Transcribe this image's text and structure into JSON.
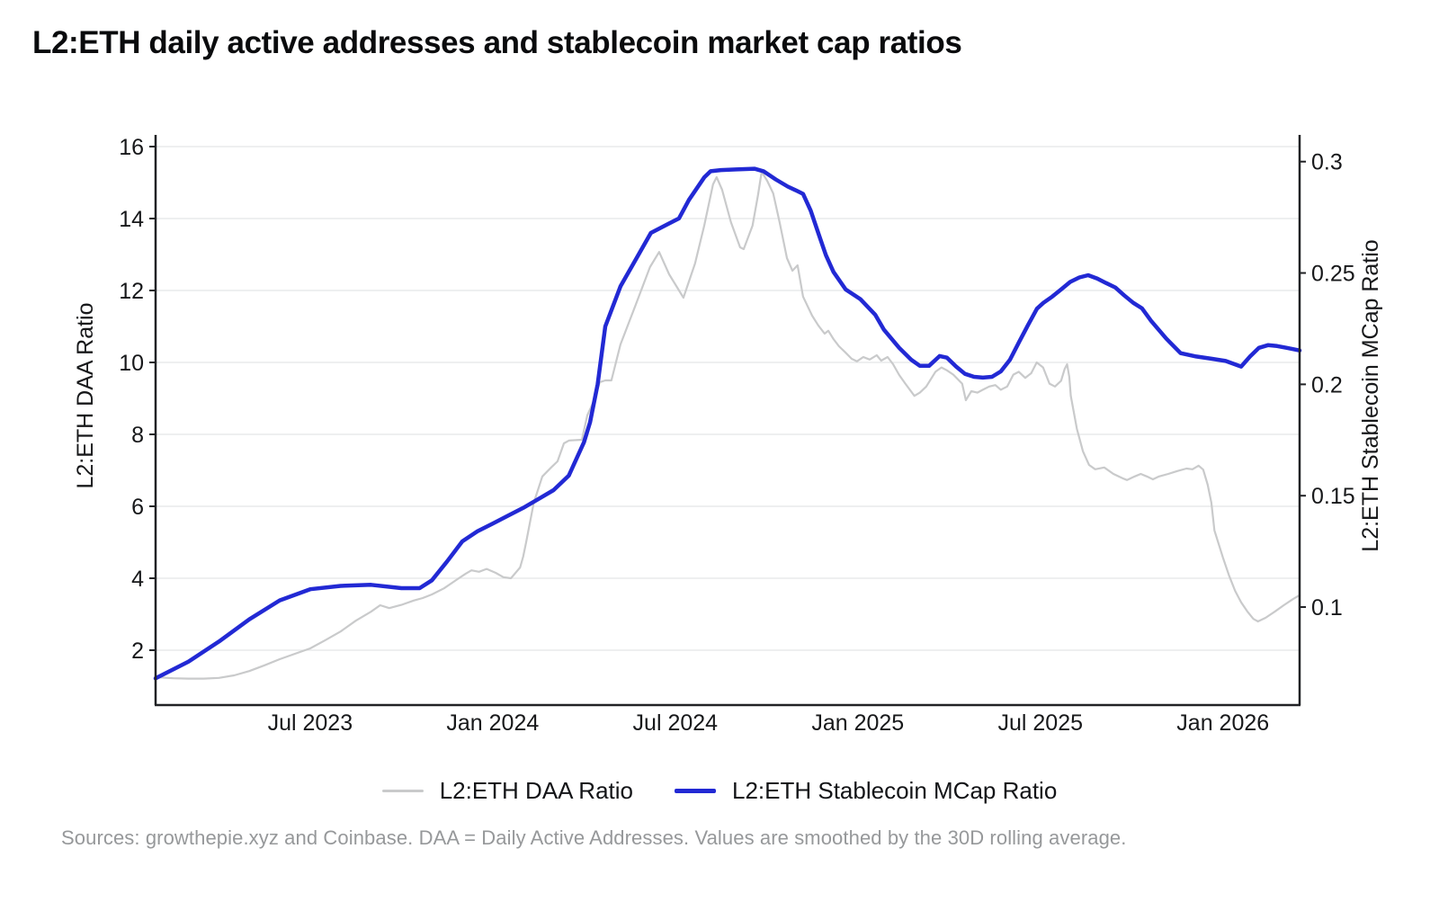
{
  "title": "L2:ETH daily active addresses and stablecoin market cap ratios",
  "source_note": "Sources: growthepie.xyz and Coinbase. DAA = Daily Active Addresses. Values are smoothed by the 30D rolling average.",
  "chart_data": {
    "type": "line",
    "title": "L2:ETH daily active addresses and stablecoin market cap ratios",
    "x_unit": "months since Jan 2023 (fractional)",
    "xlim": [
      0.92,
      38.52
    ],
    "x_ticks": [
      {
        "t": 6,
        "label": "Jul 2023"
      },
      {
        "t": 12,
        "label": "Jan 2024"
      },
      {
        "t": 18,
        "label": "Jul 2024"
      },
      {
        "t": 24,
        "label": "Jan 2025"
      },
      {
        "t": 30,
        "label": "Jul 2025"
      },
      {
        "t": 36,
        "label": "Jan 2026"
      }
    ],
    "axes": {
      "left": {
        "title": "L2:ETH DAA Ratio",
        "range": [
          0.475,
          16.325
        ],
        "ticks": [
          {
            "v": 2,
            "label": "2"
          },
          {
            "v": 4,
            "label": "4"
          },
          {
            "v": 6,
            "label": "6"
          },
          {
            "v": 8,
            "label": "8"
          },
          {
            "v": 10,
            "label": "10"
          },
          {
            "v": 12,
            "label": "12"
          },
          {
            "v": 14,
            "label": "14"
          },
          {
            "v": 16,
            "label": "16"
          }
        ]
      },
      "right": {
        "title": "L2:ETH Stablecoin MCap Ratio",
        "range": [
          0.056,
          0.312
        ],
        "ticks": [
          {
            "v": 0.1,
            "label": "0.1"
          },
          {
            "v": 0.15,
            "label": "0.15"
          },
          {
            "v": 0.2,
            "label": "0.2"
          },
          {
            "v": 0.25,
            "label": "0.25"
          },
          {
            "v": 0.3,
            "label": "0.3"
          }
        ]
      }
    },
    "grid": {
      "show": true,
      "color": "#e4e5e6",
      "on_axis": "left"
    },
    "axis_color": "#212225",
    "legend_position": "bottom-center",
    "series": [
      {
        "name": "L2:ETH DAA Ratio",
        "axis": "left",
        "color": "#c9cacb",
        "width": 2.2,
        "points": [
          [
            0.92,
            1.25
          ],
          [
            1.5,
            1.22
          ],
          [
            2,
            1.21
          ],
          [
            2.5,
            1.21
          ],
          [
            3,
            1.23
          ],
          [
            3.5,
            1.3
          ],
          [
            4,
            1.42
          ],
          [
            4.5,
            1.58
          ],
          [
            5,
            1.75
          ],
          [
            5.5,
            1.9
          ],
          [
            6,
            2.05
          ],
          [
            6.5,
            2.28
          ],
          [
            7,
            2.52
          ],
          [
            7.5,
            2.82
          ],
          [
            8,
            3.07
          ],
          [
            8.3,
            3.25
          ],
          [
            8.6,
            3.17
          ],
          [
            9,
            3.26
          ],
          [
            9.4,
            3.38
          ],
          [
            9.7,
            3.45
          ],
          [
            10,
            3.55
          ],
          [
            10.4,
            3.72
          ],
          [
            10.8,
            3.95
          ],
          [
            11.1,
            4.12
          ],
          [
            11.3,
            4.22
          ],
          [
            11.55,
            4.18
          ],
          [
            11.8,
            4.26
          ],
          [
            12.1,
            4.15
          ],
          [
            12.35,
            4.03
          ],
          [
            12.6,
            4.0
          ],
          [
            12.9,
            4.3
          ],
          [
            13.0,
            4.6
          ],
          [
            13.1,
            5.0
          ],
          [
            13.35,
            6.1
          ],
          [
            13.63,
            6.83
          ],
          [
            13.92,
            7.08
          ],
          [
            14.13,
            7.25
          ],
          [
            14.34,
            7.75
          ],
          [
            14.51,
            7.83
          ],
          [
            14.93,
            7.85
          ],
          [
            15.11,
            8.53
          ],
          [
            15.31,
            8.9
          ],
          [
            15.52,
            9.45
          ],
          [
            15.7,
            9.5
          ],
          [
            15.9,
            9.5
          ],
          [
            16.2,
            10.5
          ],
          [
            16.7,
            11.6
          ],
          [
            17.17,
            12.65
          ],
          [
            17.47,
            13.07
          ],
          [
            17.8,
            12.45
          ],
          [
            18.27,
            11.8
          ],
          [
            18.65,
            12.75
          ],
          [
            18.95,
            13.8
          ],
          [
            19.24,
            14.95
          ],
          [
            19.36,
            15.15
          ],
          [
            19.54,
            14.8
          ],
          [
            19.83,
            13.9
          ],
          [
            20.13,
            13.2
          ],
          [
            20.25,
            13.15
          ],
          [
            20.54,
            13.8
          ],
          [
            20.72,
            14.65
          ],
          [
            20.84,
            15.3
          ],
          [
            21.02,
            15.05
          ],
          [
            21.22,
            14.7
          ],
          [
            21.43,
            13.9
          ],
          [
            21.67,
            12.9
          ],
          [
            21.85,
            12.55
          ],
          [
            22.02,
            12.7
          ],
          [
            22.2,
            11.83
          ],
          [
            22.5,
            11.3
          ],
          [
            22.7,
            11.03
          ],
          [
            22.91,
            10.8
          ],
          [
            23.03,
            10.88
          ],
          [
            23.2,
            10.65
          ],
          [
            23.38,
            10.45
          ],
          [
            23.59,
            10.28
          ],
          [
            23.8,
            10.1
          ],
          [
            23.97,
            10.03
          ],
          [
            24.18,
            10.15
          ],
          [
            24.39,
            10.08
          ],
          [
            24.62,
            10.2
          ],
          [
            24.77,
            10.05
          ],
          [
            24.98,
            10.15
          ],
          [
            25.16,
            9.95
          ],
          [
            25.36,
            9.65
          ],
          [
            25.57,
            9.4
          ],
          [
            25.86,
            9.07
          ],
          [
            26.04,
            9.16
          ],
          [
            26.25,
            9.33
          ],
          [
            26.55,
            9.74
          ],
          [
            26.75,
            9.86
          ],
          [
            26.93,
            9.78
          ],
          [
            27.14,
            9.66
          ],
          [
            27.43,
            9.41
          ],
          [
            27.55,
            8.95
          ],
          [
            27.73,
            9.2
          ],
          [
            27.93,
            9.16
          ],
          [
            28.11,
            9.24
          ],
          [
            28.32,
            9.33
          ],
          [
            28.52,
            9.37
          ],
          [
            28.7,
            9.24
          ],
          [
            28.91,
            9.33
          ],
          [
            29.11,
            9.66
          ],
          [
            29.29,
            9.74
          ],
          [
            29.5,
            9.57
          ],
          [
            29.7,
            9.7
          ],
          [
            29.88,
            10.0
          ],
          [
            30.09,
            9.86
          ],
          [
            30.3,
            9.41
          ],
          [
            30.48,
            9.33
          ],
          [
            30.68,
            9.49
          ],
          [
            30.8,
            9.82
          ],
          [
            30.88,
            9.95
          ],
          [
            30.95,
            9.6
          ],
          [
            31.0,
            9.07
          ],
          [
            31.2,
            8.15
          ],
          [
            31.4,
            7.53
          ],
          [
            31.6,
            7.15
          ],
          [
            31.8,
            7.03
          ],
          [
            32.1,
            7.08
          ],
          [
            32.4,
            6.9
          ],
          [
            32.7,
            6.78
          ],
          [
            32.85,
            6.73
          ],
          [
            33.1,
            6.83
          ],
          [
            33.3,
            6.9
          ],
          [
            33.5,
            6.83
          ],
          [
            33.7,
            6.75
          ],
          [
            33.9,
            6.83
          ],
          [
            34.2,
            6.9
          ],
          [
            34.5,
            6.98
          ],
          [
            34.8,
            7.05
          ],
          [
            35.0,
            7.03
          ],
          [
            35.2,
            7.13
          ],
          [
            35.35,
            7.02
          ],
          [
            35.5,
            6.6
          ],
          [
            35.62,
            6.1
          ],
          [
            35.72,
            5.33
          ],
          [
            36.0,
            4.58
          ],
          [
            36.2,
            4.08
          ],
          [
            36.4,
            3.65
          ],
          [
            36.6,
            3.33
          ],
          [
            36.8,
            3.08
          ],
          [
            37.0,
            2.87
          ],
          [
            37.15,
            2.8
          ],
          [
            37.4,
            2.9
          ],
          [
            37.7,
            3.07
          ],
          [
            38.0,
            3.25
          ],
          [
            38.3,
            3.42
          ],
          [
            38.52,
            3.53
          ]
        ]
      },
      {
        "name": "L2:ETH Stablecoin MCap Ratio",
        "axis": "right",
        "color": "#2229d4",
        "width": 4.5,
        "points": [
          [
            0.92,
            0.068
          ],
          [
            2,
            0.0755
          ],
          [
            3,
            0.0845
          ],
          [
            4,
            0.0945
          ],
          [
            5,
            0.103
          ],
          [
            6,
            0.108
          ],
          [
            7,
            0.1095
          ],
          [
            8,
            0.11
          ],
          [
            9,
            0.1085
          ],
          [
            9.6,
            0.1085
          ],
          [
            10,
            0.112
          ],
          [
            10.5,
            0.1205
          ],
          [
            11,
            0.1295
          ],
          [
            11.5,
            0.134
          ],
          [
            12,
            0.1375
          ],
          [
            12.5,
            0.141
          ],
          [
            13,
            0.1445
          ],
          [
            13.5,
            0.1485
          ],
          [
            14,
            0.1525
          ],
          [
            14.5,
            0.159
          ],
          [
            15,
            0.174
          ],
          [
            15.2,
            0.183
          ],
          [
            15.45,
            0.2
          ],
          [
            15.7,
            0.226
          ],
          [
            16.2,
            0.244
          ],
          [
            16.7,
            0.256
          ],
          [
            17.2,
            0.268
          ],
          [
            17.76,
            0.272
          ],
          [
            18.12,
            0.2745
          ],
          [
            18.45,
            0.2828
          ],
          [
            18.95,
            0.2929
          ],
          [
            19.16,
            0.2957
          ],
          [
            19.5,
            0.2962
          ],
          [
            20,
            0.2965
          ],
          [
            20.6,
            0.2968
          ],
          [
            20.9,
            0.2957
          ],
          [
            21.3,
            0.292
          ],
          [
            21.7,
            0.2888
          ],
          [
            21.95,
            0.2872
          ],
          [
            22.2,
            0.2855
          ],
          [
            22.45,
            0.278
          ],
          [
            22.7,
            0.268
          ],
          [
            22.95,
            0.258
          ],
          [
            23.2,
            0.2505
          ],
          [
            23.6,
            0.2426
          ],
          [
            24.09,
            0.2382
          ],
          [
            24.57,
            0.2313
          ],
          [
            24.86,
            0.2245
          ],
          [
            25.36,
            0.2164
          ],
          [
            25.75,
            0.2111
          ],
          [
            26.04,
            0.2083
          ],
          [
            26.34,
            0.2083
          ],
          [
            26.69,
            0.2127
          ],
          [
            26.93,
            0.212
          ],
          [
            27.23,
            0.208
          ],
          [
            27.52,
            0.2047
          ],
          [
            27.82,
            0.2034
          ],
          [
            28.11,
            0.203
          ],
          [
            28.41,
            0.2034
          ],
          [
            28.7,
            0.2058
          ],
          [
            29,
            0.211
          ],
          [
            29.3,
            0.219
          ],
          [
            29.59,
            0.2265
          ],
          [
            29.89,
            0.234
          ],
          [
            30.1,
            0.2366
          ],
          [
            30.39,
            0.2394
          ],
          [
            30.69,
            0.2427
          ],
          [
            30.98,
            0.246
          ],
          [
            31.28,
            0.248
          ],
          [
            31.57,
            0.249
          ],
          [
            31.87,
            0.2475
          ],
          [
            32.16,
            0.2455
          ],
          [
            32.46,
            0.2435
          ],
          [
            32.75,
            0.24
          ],
          [
            33.05,
            0.2366
          ],
          [
            33.34,
            0.2341
          ],
          [
            33.64,
            0.2285
          ],
          [
            34.14,
            0.2205
          ],
          [
            34.61,
            0.214
          ],
          [
            35.12,
            0.2125
          ],
          [
            35.62,
            0.2115
          ],
          [
            36.09,
            0.2105
          ],
          [
            36.6,
            0.208
          ],
          [
            36.89,
            0.2125
          ],
          [
            37.18,
            0.2164
          ],
          [
            37.48,
            0.2176
          ],
          [
            37.78,
            0.2172
          ],
          [
            38.1,
            0.2164
          ],
          [
            38.52,
            0.2152
          ]
        ]
      }
    ]
  }
}
